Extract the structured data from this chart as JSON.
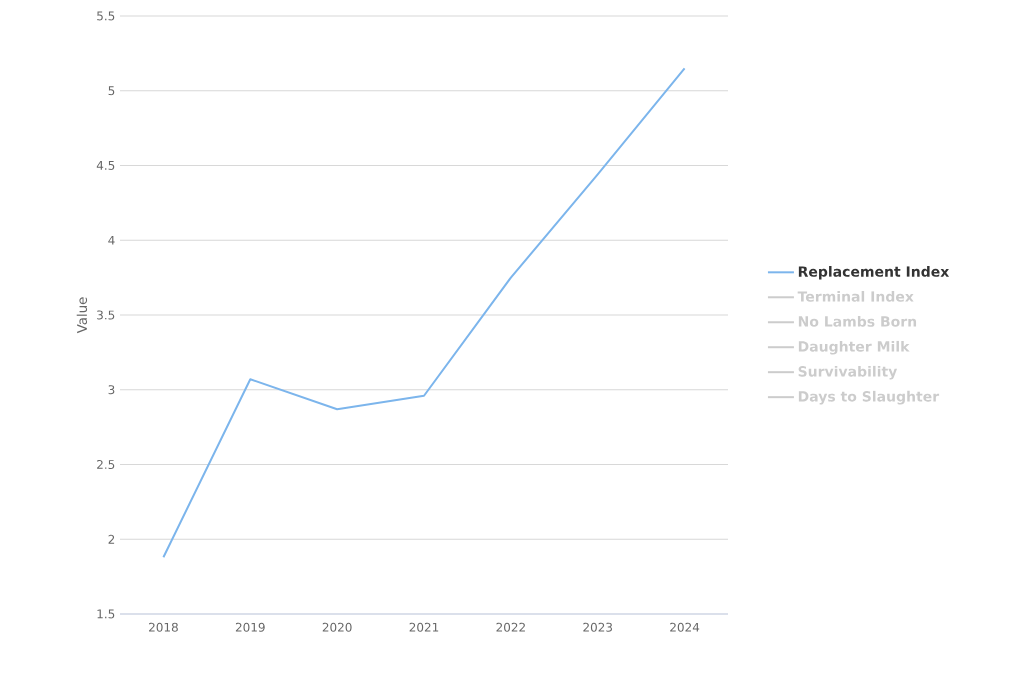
{
  "chart_data": {
    "type": "line",
    "ylabel": "Value",
    "categories": [
      "2018",
      "2019",
      "2020",
      "2021",
      "2022",
      "2023",
      "2024"
    ],
    "series": [
      {
        "name": "Replacement Index",
        "color": "#7cb5ec",
        "values": [
          1.88,
          3.07,
          2.87,
          2.96,
          3.75,
          4.44,
          5.15
        ]
      },
      {
        "name": "Terminal Index",
        "color": "#cccccc",
        "values": [
          null,
          null,
          null,
          null,
          null,
          null,
          null
        ]
      },
      {
        "name": "No Lambs Born",
        "color": "#cccccc",
        "values": [
          null,
          null,
          null,
          null,
          null,
          null,
          null
        ]
      },
      {
        "name": "Daughter Milk",
        "color": "#cccccc",
        "values": [
          null,
          null,
          null,
          null,
          null,
          null,
          null
        ]
      },
      {
        "name": "Survivability",
        "color": "#cccccc",
        "values": [
          null,
          null,
          null,
          null,
          null,
          null,
          null
        ]
      },
      {
        "name": "Days to Slaughter",
        "color": "#cccccc",
        "values": [
          null,
          null,
          null,
          null,
          null,
          null,
          null
        ]
      }
    ],
    "ylim": [
      1.5,
      5.5
    ],
    "yticks": [
      1.5,
      2,
      2.5,
      3,
      3.5,
      4,
      4.5,
      5,
      5.5
    ],
    "grid": "y",
    "legend": "right",
    "marker": "none",
    "line_style": "solid"
  }
}
